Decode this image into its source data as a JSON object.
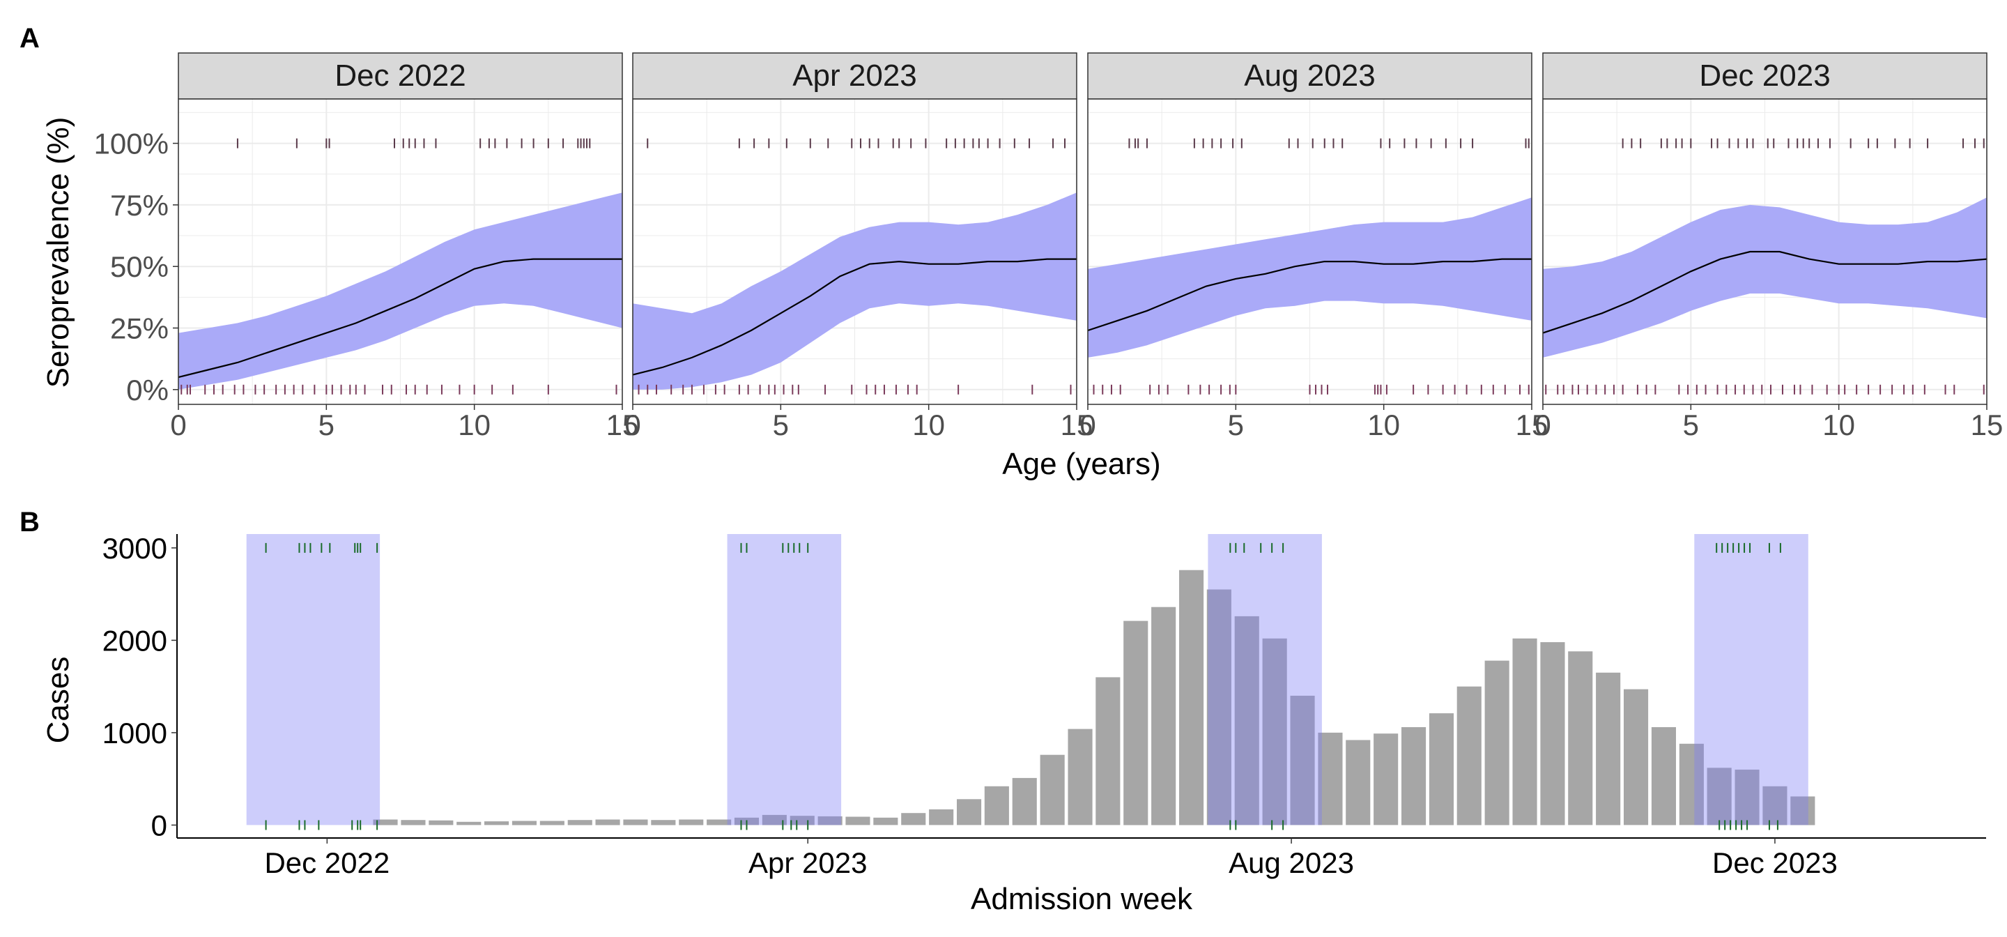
{
  "panel_labels": {
    "a": "A",
    "b": "B"
  },
  "colors": {
    "band": "#aaaaf8",
    "line": "#000000",
    "strip_fill": "#d9d9d9",
    "bar": "#a6a6a6",
    "shade": "#c9c9fa",
    "overlap_bar": "#8a8ac0",
    "rug_top": "#5a3a4a",
    "rug_bottom": "#7a3a5a",
    "rug_case": "#1a6b2a",
    "grid": "#ebebeb"
  },
  "chart_data": [
    {
      "type": "line",
      "subtype": "faceted smooth with ribbon and rug",
      "ylabel": "Seroprevalence (%)",
      "xlabel": "Age (years)",
      "xlim": [
        0,
        15
      ],
      "ylim": [
        -0.06,
        1.18
      ],
      "xticks": [
        0,
        5,
        10,
        15
      ],
      "xtick_labels": [
        "0",
        "5",
        "10",
        "15"
      ],
      "yticks": [
        0,
        0.25,
        0.5,
        0.75,
        1.0
      ],
      "ytick_labels": [
        "0%",
        "25%",
        "50%",
        "75%",
        "100%"
      ],
      "grid": true,
      "facets": [
        {
          "title": "Dec 2022",
          "x": [
            0,
            1,
            2,
            3,
            4,
            5,
            6,
            7,
            8,
            9,
            10,
            11,
            12,
            13,
            14,
            15
          ],
          "fit": [
            0.05,
            0.08,
            0.11,
            0.15,
            0.19,
            0.23,
            0.27,
            0.32,
            0.37,
            0.43,
            0.49,
            0.52,
            0.53,
            0.53,
            0.53,
            0.53
          ],
          "lower": [
            0.0,
            0.02,
            0.04,
            0.07,
            0.1,
            0.13,
            0.16,
            0.2,
            0.25,
            0.3,
            0.34,
            0.35,
            0.34,
            0.31,
            0.28,
            0.25
          ],
          "upper": [
            0.23,
            0.25,
            0.27,
            0.3,
            0.34,
            0.38,
            0.43,
            0.48,
            0.54,
            0.6,
            0.65,
            0.68,
            0.71,
            0.74,
            0.77,
            0.8
          ],
          "rug_top": [
            2.0,
            4.0,
            5.0,
            5.1,
            7.3,
            7.6,
            7.8,
            8.0,
            8.3,
            8.7,
            10.2,
            10.5,
            10.7,
            11.1,
            11.6,
            12.0,
            12.5,
            13.0,
            13.5,
            13.6,
            13.7,
            13.8,
            13.9
          ],
          "rug_bottom": [
            0.1,
            0.3,
            0.4,
            0.9,
            1.2,
            1.5,
            1.9,
            2.2,
            2.6,
            2.9,
            3.3,
            3.6,
            3.9,
            4.2,
            4.6,
            5.0,
            5.2,
            5.5,
            5.8,
            6.0,
            6.3,
            6.9,
            7.2,
            7.7,
            8.0,
            8.4,
            8.9,
            9.5,
            10.0,
            10.6,
            11.3,
            12.5,
            14.8
          ]
        },
        {
          "title": "Apr 2023",
          "x": [
            0,
            1,
            2,
            3,
            4,
            5,
            6,
            7,
            8,
            9,
            10,
            11,
            12,
            13,
            14,
            15
          ],
          "fit": [
            0.06,
            0.09,
            0.13,
            0.18,
            0.24,
            0.31,
            0.38,
            0.46,
            0.51,
            0.52,
            0.51,
            0.51,
            0.52,
            0.52,
            0.53,
            0.53
          ],
          "lower": [
            0.0,
            0.0,
            0.01,
            0.03,
            0.06,
            0.11,
            0.19,
            0.27,
            0.33,
            0.35,
            0.34,
            0.35,
            0.34,
            0.32,
            0.3,
            0.28
          ],
          "upper": [
            0.35,
            0.33,
            0.31,
            0.35,
            0.42,
            0.48,
            0.55,
            0.62,
            0.66,
            0.68,
            0.68,
            0.67,
            0.68,
            0.71,
            0.75,
            0.8
          ],
          "rug_top": [
            0.5,
            3.6,
            4.1,
            4.6,
            5.2,
            6.0,
            6.6,
            7.4,
            7.7,
            8.0,
            8.3,
            8.8,
            9.0,
            9.4,
            9.9,
            10.6,
            10.9,
            11.2,
            11.5,
            11.7,
            12.0,
            12.4,
            12.9,
            13.4,
            14.2,
            14.6
          ],
          "rug_bottom": [
            0.2,
            0.5,
            0.8,
            1.3,
            1.7,
            2.0,
            2.4,
            2.8,
            3.1,
            3.6,
            3.9,
            4.3,
            4.6,
            4.8,
            5.1,
            5.4,
            5.6,
            6.5,
            7.4,
            7.9,
            8.2,
            8.5,
            8.9,
            9.3,
            9.6,
            11.0,
            13.5,
            14.8
          ]
        },
        {
          "title": "Aug 2023",
          "x": [
            0,
            1,
            2,
            3,
            4,
            5,
            6,
            7,
            8,
            9,
            10,
            11,
            12,
            13,
            14,
            15
          ],
          "fit": [
            0.24,
            0.28,
            0.32,
            0.37,
            0.42,
            0.45,
            0.47,
            0.5,
            0.52,
            0.52,
            0.51,
            0.51,
            0.52,
            0.52,
            0.53,
            0.53
          ],
          "lower": [
            0.13,
            0.15,
            0.18,
            0.22,
            0.26,
            0.3,
            0.33,
            0.34,
            0.36,
            0.36,
            0.35,
            0.35,
            0.34,
            0.32,
            0.3,
            0.28
          ],
          "upper": [
            0.49,
            0.51,
            0.53,
            0.55,
            0.57,
            0.59,
            0.61,
            0.63,
            0.65,
            0.67,
            0.68,
            0.68,
            0.68,
            0.7,
            0.74,
            0.78
          ],
          "rug_top": [
            1.4,
            1.6,
            1.7,
            2.0,
            3.6,
            3.9,
            4.2,
            4.5,
            4.9,
            5.2,
            6.8,
            7.1,
            7.6,
            8.0,
            8.3,
            8.6,
            9.9,
            10.2,
            10.7,
            11.1,
            11.6,
            12.1,
            12.6,
            13.0,
            14.8,
            14.9
          ],
          "rug_bottom": [
            0.2,
            0.5,
            0.8,
            1.1,
            2.1,
            2.4,
            2.7,
            3.4,
            3.8,
            4.1,
            4.5,
            4.8,
            5.0,
            7.5,
            7.7,
            7.9,
            8.1,
            9.7,
            9.8,
            9.9,
            10.1,
            11.0,
            11.5,
            12.0,
            12.4,
            12.8,
            13.3,
            13.7,
            14.1,
            14.6,
            14.9
          ]
        },
        {
          "title": "Dec 2023",
          "x": [
            0,
            1,
            2,
            3,
            4,
            5,
            6,
            7,
            8,
            9,
            10,
            11,
            12,
            13,
            14,
            15
          ],
          "fit": [
            0.23,
            0.27,
            0.31,
            0.36,
            0.42,
            0.48,
            0.53,
            0.56,
            0.56,
            0.53,
            0.51,
            0.51,
            0.51,
            0.52,
            0.52,
            0.53
          ],
          "lower": [
            0.13,
            0.16,
            0.19,
            0.23,
            0.27,
            0.32,
            0.36,
            0.39,
            0.39,
            0.37,
            0.35,
            0.35,
            0.34,
            0.33,
            0.31,
            0.29
          ],
          "upper": [
            0.49,
            0.5,
            0.52,
            0.56,
            0.62,
            0.68,
            0.73,
            0.75,
            0.74,
            0.71,
            0.68,
            0.67,
            0.67,
            0.68,
            0.72,
            0.78
          ],
          "rug_top": [
            2.7,
            3.0,
            3.3,
            4.0,
            4.2,
            4.5,
            4.7,
            5.0,
            5.7,
            5.9,
            6.3,
            6.6,
            6.9,
            7.1,
            7.6,
            7.8,
            8.3,
            8.6,
            8.8,
            9.0,
            9.3,
            9.7,
            10.4,
            11.0,
            11.3,
            11.9,
            12.4,
            13.0,
            14.2,
            14.6,
            14.9
          ],
          "rug_bottom": [
            0.1,
            0.5,
            0.7,
            1.0,
            1.2,
            1.5,
            1.8,
            2.1,
            2.4,
            2.7,
            3.2,
            3.5,
            3.8,
            4.6,
            4.9,
            5.2,
            5.5,
            5.9,
            6.2,
            6.5,
            6.8,
            7.1,
            7.4,
            7.7,
            8.1,
            8.5,
            8.7,
            9.1,
            9.6,
            10.0,
            10.2,
            10.6,
            11.0,
            11.4,
            11.8,
            12.2,
            12.5,
            12.9,
            13.6,
            13.9,
            14.9
          ]
        }
      ]
    },
    {
      "type": "bar",
      "subtype": "weekly cases with shaded sampling windows and rug",
      "ylabel": "Cases",
      "xlabel": "Admission week",
      "ylim": [
        -140,
        3150
      ],
      "yticks": [
        0,
        1000,
        2000,
        3000
      ],
      "ytick_labels": [
        "0",
        "1000",
        "2000",
        "3000"
      ],
      "x_units": "weeks since first shown bar",
      "xlim": [
        -7.5,
        57.6
      ],
      "xticks": [
        -2.1,
        15.2,
        32.6,
        50.0
      ],
      "xtick_labels": [
        "Dec 2022",
        "Apr 2023",
        "Aug 2023",
        "Dec 2023"
      ],
      "grid": false,
      "values": [
        60,
        55,
        50,
        35,
        40,
        45,
        45,
        55,
        60,
        60,
        55,
        60,
        60,
        80,
        110,
        100,
        95,
        90,
        80,
        130,
        170,
        280,
        420,
        510,
        760,
        1040,
        1600,
        2210,
        2360,
        2760,
        2550,
        2260,
        2020,
        1400,
        1000,
        920,
        990,
        1060,
        1210,
        1500,
        1780,
        2020,
        1980,
        1880,
        1650,
        1470,
        1060,
        880,
        620,
        600,
        420,
        310
      ],
      "windows": [
        {
          "start": -5.0,
          "end": -0.2
        },
        {
          "start": 12.3,
          "end": 16.4
        },
        {
          "start": 29.6,
          "end": 33.7
        },
        {
          "start": 47.1,
          "end": 51.2
        }
      ],
      "rug_top": [
        -4.3,
        -3.1,
        -2.9,
        -2.7,
        -2.3,
        -2.0,
        -1.1,
        -1.0,
        -0.9,
        -0.3,
        12.8,
        13.0,
        14.3,
        14.5,
        14.7,
        14.9,
        15.2,
        30.4,
        30.6,
        30.9,
        31.5,
        31.9,
        32.3,
        47.9,
        48.1,
        48.3,
        48.5,
        48.7,
        48.9,
        49.1,
        49.8,
        50.2
      ],
      "rug_bottom": [
        -4.3,
        -3.1,
        -2.9,
        -2.4,
        -1.2,
        -1.0,
        -0.9,
        -0.3,
        12.8,
        13.0,
        14.3,
        14.6,
        14.8,
        15.2,
        30.4,
        30.6,
        31.9,
        32.3,
        48.0,
        48.2,
        48.4,
        48.6,
        48.8,
        49.0,
        49.8,
        50.1
      ]
    }
  ]
}
